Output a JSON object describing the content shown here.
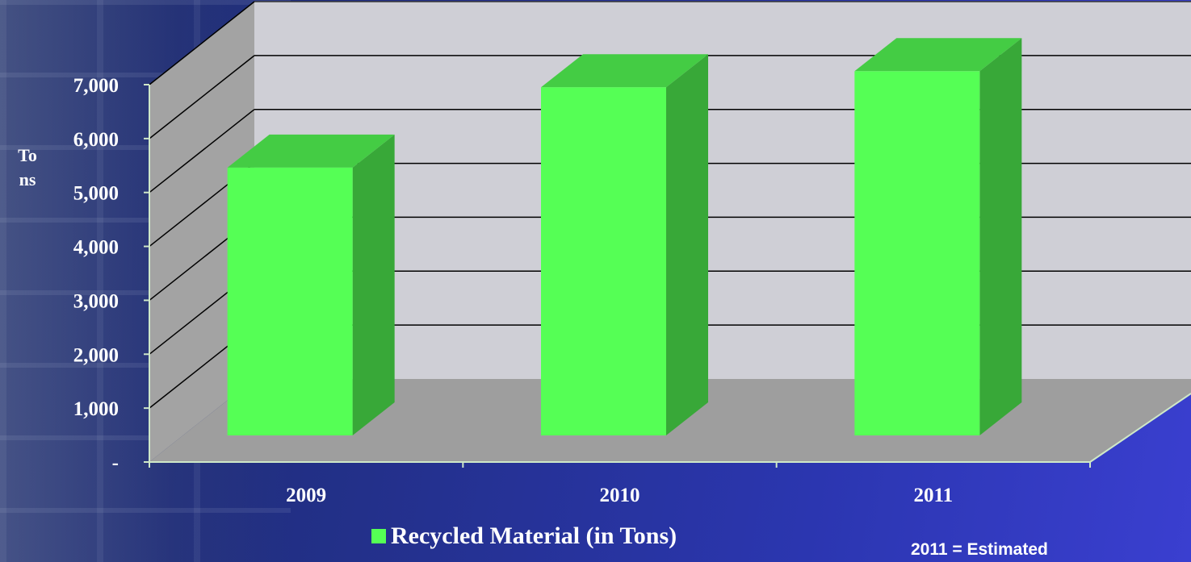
{
  "chart_data": {
    "type": "bar",
    "categories": [
      "2009",
      "2010",
      "2011"
    ],
    "series": [
      {
        "name": "Recycled Material (in Tons)",
        "values": [
          5000,
          6500,
          6800
        ],
        "color": "#55ff55"
      }
    ],
    "ylabel": "Tons",
    "y_ticks": [
      "-",
      "1,000",
      "2,000",
      "3,000",
      "4,000",
      "5,000",
      "6,000",
      "7,000"
    ],
    "ylim": [
      0,
      7000
    ],
    "grid": true,
    "legend": "bottom",
    "annotation": "2011 =  Estimated",
    "colors": {
      "bar_front": "#55ff55",
      "bar_top": "#44cc44",
      "bar_side": "#38a838",
      "wall": "#cfcfd6",
      "floor": "#9e9e9e",
      "side_wall": "#a3a3a3"
    }
  }
}
